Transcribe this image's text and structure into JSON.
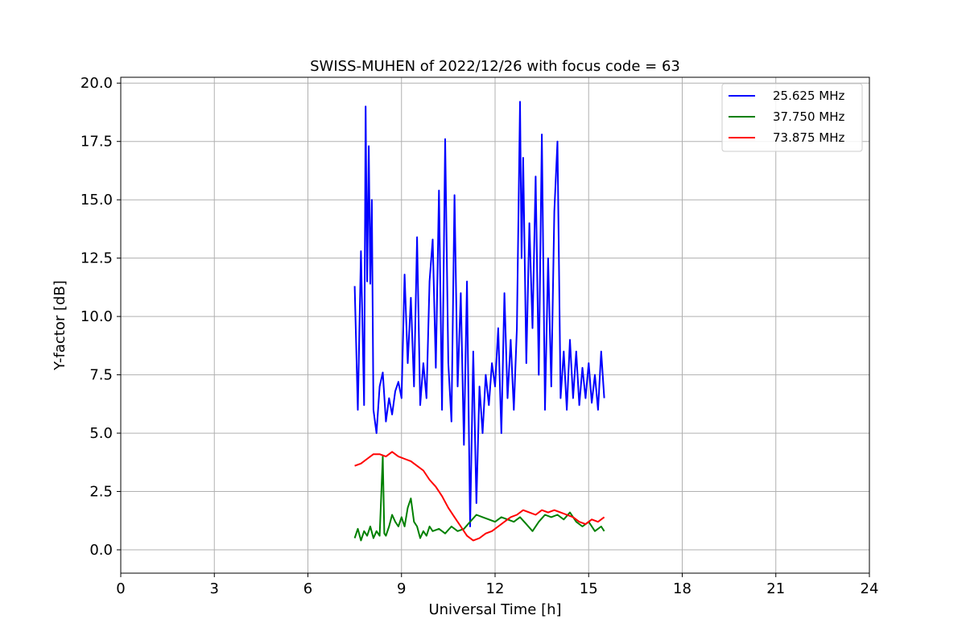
{
  "chart_data": {
    "type": "line",
    "title": "SWISS-MUHEN of 2022/12/26 with focus code = 63",
    "xlabel": "Universal Time [h]",
    "ylabel": "Y-factor [dB]",
    "xlim": [
      0,
      24
    ],
    "ylim": [
      -1,
      20.25
    ],
    "xticks": [
      0,
      3,
      6,
      9,
      12,
      15,
      18,
      21,
      24
    ],
    "xtick_labels": [
      "0",
      "3",
      "6",
      "9",
      "12",
      "15",
      "18",
      "21",
      "24"
    ],
    "yticks": [
      0,
      2.5,
      5,
      7.5,
      10,
      12.5,
      15,
      17.5,
      20
    ],
    "ytick_labels": [
      "0.0",
      "2.5",
      "5.0",
      "7.5",
      "10.0",
      "12.5",
      "15.0",
      "17.5",
      "20.0"
    ],
    "grid": true,
    "legend_position": "top-right",
    "series": [
      {
        "name": "25.625 MHz",
        "color": "#0000ff",
        "x": [
          7.5,
          7.6,
          7.7,
          7.8,
          7.85,
          7.9,
          7.95,
          8.0,
          8.05,
          8.1,
          8.2,
          8.3,
          8.4,
          8.5,
          8.6,
          8.7,
          8.8,
          8.9,
          9.0,
          9.1,
          9.2,
          9.3,
          9.4,
          9.5,
          9.6,
          9.7,
          9.8,
          9.9,
          10.0,
          10.1,
          10.2,
          10.3,
          10.4,
          10.5,
          10.6,
          10.7,
          10.8,
          10.9,
          11.0,
          11.1,
          11.2,
          11.3,
          11.4,
          11.5,
          11.6,
          11.7,
          11.8,
          11.9,
          12.0,
          12.1,
          12.2,
          12.3,
          12.4,
          12.5,
          12.6,
          12.7,
          12.8,
          12.85,
          12.9,
          13.0,
          13.1,
          13.2,
          13.3,
          13.4,
          13.5,
          13.6,
          13.7,
          13.8,
          13.9,
          14.0,
          14.1,
          14.2,
          14.3,
          14.4,
          14.5,
          14.6,
          14.7,
          14.8,
          14.9,
          15.0,
          15.1,
          15.2,
          15.3,
          15.4,
          15.5
        ],
        "values": [
          11.3,
          6.0,
          12.8,
          6.2,
          19.0,
          11.5,
          17.3,
          11.4,
          15.0,
          6.0,
          5.0,
          7.0,
          7.6,
          5.5,
          6.5,
          5.8,
          6.8,
          7.2,
          6.5,
          11.8,
          8.0,
          10.8,
          7.0,
          13.4,
          6.2,
          8.0,
          6.5,
          11.5,
          13.3,
          7.8,
          15.4,
          6.0,
          17.6,
          8.0,
          5.5,
          15.2,
          7.0,
          11.0,
          4.5,
          11.5,
          1.0,
          8.5,
          2.0,
          7.0,
          5.0,
          7.5,
          6.2,
          8.0,
          7.0,
          9.5,
          5.0,
          11.0,
          6.5,
          9.0,
          6.0,
          9.5,
          19.2,
          12.5,
          16.8,
          8.0,
          14.0,
          9.5,
          16.0,
          7.5,
          17.8,
          6.0,
          12.5,
          7.0,
          14.5,
          17.5,
          6.5,
          8.5,
          6.0,
          9.0,
          6.5,
          8.5,
          6.2,
          7.8,
          6.5,
          8.0,
          6.3,
          7.5,
          6.0,
          8.5,
          6.5
        ]
      },
      {
        "name": "37.750 MHz",
        "color": "#008000",
        "x": [
          7.5,
          7.6,
          7.7,
          7.8,
          7.9,
          8.0,
          8.1,
          8.2,
          8.3,
          8.4,
          8.45,
          8.5,
          8.6,
          8.7,
          8.8,
          8.9,
          9.0,
          9.1,
          9.2,
          9.3,
          9.4,
          9.5,
          9.6,
          9.7,
          9.8,
          9.9,
          10.0,
          10.2,
          10.4,
          10.6,
          10.8,
          11.0,
          11.2,
          11.4,
          11.6,
          11.8,
          12.0,
          12.2,
          12.4,
          12.6,
          12.8,
          13.0,
          13.2,
          13.4,
          13.6,
          13.8,
          14.0,
          14.2,
          14.4,
          14.6,
          14.8,
          15.0,
          15.2,
          15.4,
          15.5
        ],
        "values": [
          0.5,
          0.9,
          0.4,
          0.8,
          0.6,
          1.0,
          0.5,
          0.8,
          0.6,
          4.0,
          0.7,
          0.6,
          1.0,
          1.5,
          1.2,
          1.0,
          1.4,
          1.0,
          1.8,
          2.2,
          1.2,
          1.0,
          0.5,
          0.8,
          0.6,
          1.0,
          0.8,
          0.9,
          0.7,
          1.0,
          0.8,
          0.9,
          1.2,
          1.5,
          1.4,
          1.3,
          1.2,
          1.4,
          1.3,
          1.2,
          1.4,
          1.1,
          0.8,
          1.2,
          1.5,
          1.4,
          1.5,
          1.3,
          1.6,
          1.2,
          1.0,
          1.2,
          0.8,
          1.0,
          0.8
        ]
      },
      {
        "name": "73.875 MHz",
        "color": "#ff0000",
        "x": [
          7.5,
          7.7,
          7.9,
          8.1,
          8.3,
          8.5,
          8.7,
          8.9,
          9.1,
          9.3,
          9.5,
          9.7,
          9.9,
          10.1,
          10.3,
          10.5,
          10.7,
          10.9,
          11.1,
          11.3,
          11.5,
          11.7,
          11.9,
          12.1,
          12.3,
          12.5,
          12.7,
          12.9,
          13.1,
          13.3,
          13.5,
          13.7,
          13.9,
          14.1,
          14.3,
          14.5,
          14.7,
          14.9,
          15.1,
          15.3,
          15.5
        ],
        "values": [
          3.6,
          3.7,
          3.9,
          4.1,
          4.1,
          4.0,
          4.2,
          4.0,
          3.9,
          3.8,
          3.6,
          3.4,
          3.0,
          2.7,
          2.3,
          1.8,
          1.4,
          1.0,
          0.6,
          0.4,
          0.5,
          0.7,
          0.8,
          1.0,
          1.2,
          1.4,
          1.5,
          1.7,
          1.6,
          1.5,
          1.7,
          1.6,
          1.7,
          1.6,
          1.5,
          1.4,
          1.2,
          1.1,
          1.3,
          1.2,
          1.4
        ]
      }
    ]
  }
}
